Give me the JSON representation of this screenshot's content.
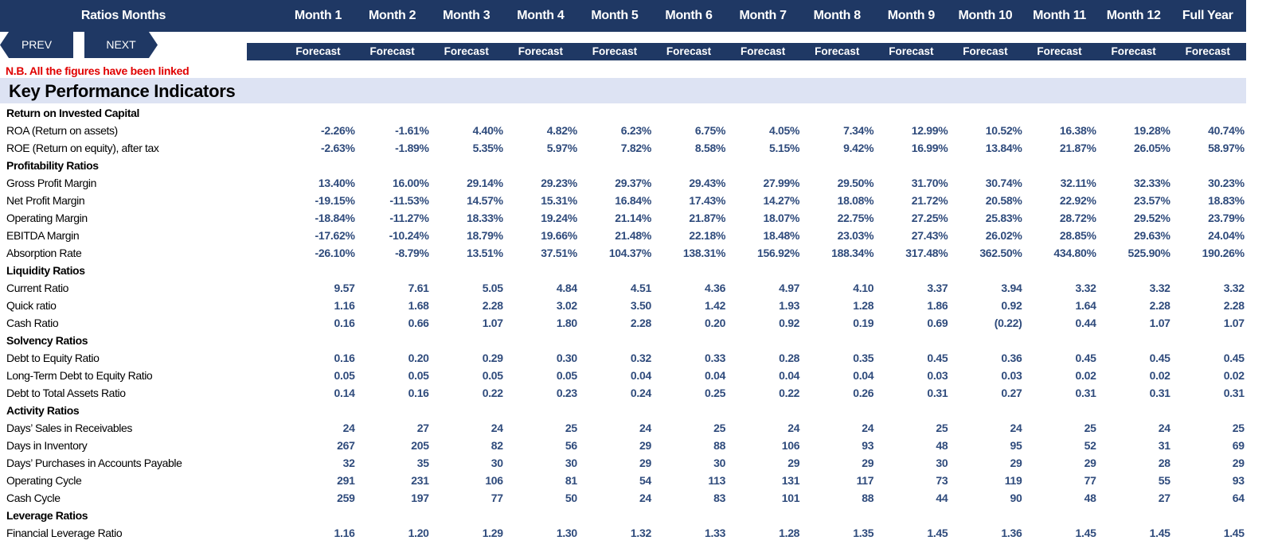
{
  "header": {
    "title": "Ratios Months",
    "columns": [
      "Month 1",
      "Month 2",
      "Month 3",
      "Month 4",
      "Month 5",
      "Month 6",
      "Month 7",
      "Month 8",
      "Month 9",
      "Month 10",
      "Month 11",
      "Month 12",
      "Full Year"
    ],
    "subheaders": [
      "Forecast",
      "Forecast",
      "Forecast",
      "Forecast",
      "Forecast",
      "Forecast",
      "Forecast",
      "Forecast",
      "Forecast",
      "Forecast",
      "Forecast",
      "Forecast",
      "Forecast"
    ]
  },
  "buttons": [
    "PREV",
    "NEXT"
  ],
  "note": "N.B. All the figures have been linked",
  "section": "Key Performance Indicators",
  "groups": [
    {
      "title": "Return on Invested Capital",
      "rows": [
        {
          "label": "ROA (Return on assets)",
          "values": [
            "-2.26%",
            "-1.61%",
            "4.40%",
            "4.82%",
            "6.23%",
            "6.75%",
            "4.05%",
            "7.34%",
            "12.99%",
            "10.52%",
            "16.38%",
            "19.28%",
            "40.74%"
          ]
        },
        {
          "label": "ROE (Return on equity), after tax",
          "values": [
            "-2.63%",
            "-1.89%",
            "5.35%",
            "5.97%",
            "7.82%",
            "8.58%",
            "5.15%",
            "9.42%",
            "16.99%",
            "13.84%",
            "21.87%",
            "26.05%",
            "58.97%"
          ]
        }
      ]
    },
    {
      "title": "Profitability Ratios",
      "rows": [
        {
          "label": "Gross Profit Margin",
          "values": [
            "13.40%",
            "16.00%",
            "29.14%",
            "29.23%",
            "29.37%",
            "29.43%",
            "27.99%",
            "29.50%",
            "31.70%",
            "30.74%",
            "32.11%",
            "32.33%",
            "30.23%"
          ]
        },
        {
          "label": "Net Profit Margin",
          "values": [
            "-19.15%",
            "-11.53%",
            "14.57%",
            "15.31%",
            "16.84%",
            "17.43%",
            "14.27%",
            "18.08%",
            "21.72%",
            "20.58%",
            "22.92%",
            "23.57%",
            "18.83%"
          ]
        },
        {
          "label": "Operating Margin",
          "values": [
            "-18.84%",
            "-11.27%",
            "18.33%",
            "19.24%",
            "21.14%",
            "21.87%",
            "18.07%",
            "22.75%",
            "27.25%",
            "25.83%",
            "28.72%",
            "29.52%",
            "23.79%"
          ]
        },
        {
          "label": "EBITDA Margin",
          "values": [
            "-17.62%",
            "-10.24%",
            "18.79%",
            "19.66%",
            "21.48%",
            "22.18%",
            "18.48%",
            "23.03%",
            "27.43%",
            "26.02%",
            "28.85%",
            "29.63%",
            "24.04%"
          ]
        },
        {
          "label": "Absorption Rate",
          "values": [
            "-26.10%",
            "-8.79%",
            "13.51%",
            "37.51%",
            "104.37%",
            "138.31%",
            "156.92%",
            "188.34%",
            "317.48%",
            "362.50%",
            "434.80%",
            "525.90%",
            "190.26%"
          ]
        }
      ]
    },
    {
      "title": "Liquidity Ratios",
      "rows": [
        {
          "label": "Current Ratio",
          "values": [
            "9.57",
            "7.61",
            "5.05",
            "4.84",
            "4.51",
            "4.36",
            "4.97",
            "4.10",
            "3.37",
            "3.94",
            "3.32",
            "3.32",
            "3.32"
          ]
        },
        {
          "label": "Quick ratio",
          "values": [
            "1.16",
            "1.68",
            "2.28",
            "3.02",
            "3.50",
            "1.42",
            "1.93",
            "1.28",
            "1.86",
            "0.92",
            "1.64",
            "2.28",
            "2.28"
          ]
        },
        {
          "label": "Cash Ratio",
          "values": [
            "0.16",
            "0.66",
            "1.07",
            "1.80",
            "2.28",
            "0.20",
            "0.92",
            "0.19",
            "0.69",
            "(0.22)",
            "0.44",
            "1.07",
            "1.07"
          ]
        }
      ]
    },
    {
      "title": "Solvency Ratios",
      "rows": [
        {
          "label": "Debt to Equity Ratio",
          "values": [
            "0.16",
            "0.20",
            "0.29",
            "0.30",
            "0.32",
            "0.33",
            "0.28",
            "0.35",
            "0.45",
            "0.36",
            "0.45",
            "0.45",
            "0.45"
          ]
        },
        {
          "label": "Long-Term Debt to Equity Ratio",
          "values": [
            "0.05",
            "0.05",
            "0.05",
            "0.05",
            "0.04",
            "0.04",
            "0.04",
            "0.04",
            "0.03",
            "0.03",
            "0.02",
            "0.02",
            "0.02"
          ]
        },
        {
          "label": "Debt to Total Assets Ratio",
          "values": [
            "0.14",
            "0.16",
            "0.22",
            "0.23",
            "0.24",
            "0.25",
            "0.22",
            "0.26",
            "0.31",
            "0.27",
            "0.31",
            "0.31",
            "0.31"
          ]
        }
      ]
    },
    {
      "title": "Activity Ratios",
      "rows": [
        {
          "label": "Days’ Sales in Receivables",
          "values": [
            "24",
            "27",
            "24",
            "25",
            "24",
            "25",
            "24",
            "24",
            "25",
            "24",
            "25",
            "24",
            "25"
          ]
        },
        {
          "label": "Days in Inventory",
          "values": [
            "267",
            "205",
            "82",
            "56",
            "29",
            "88",
            "106",
            "93",
            "48",
            "95",
            "52",
            "31",
            "69"
          ]
        },
        {
          "label": "Days’ Purchases in Accounts Payable",
          "values": [
            "32",
            "35",
            "30",
            "30",
            "29",
            "30",
            "29",
            "29",
            "30",
            "29",
            "29",
            "28",
            "29"
          ]
        },
        {
          "label": "Operating Cycle",
          "values": [
            "291",
            "231",
            "106",
            "81",
            "54",
            "113",
            "131",
            "117",
            "73",
            "119",
            "77",
            "55",
            "93"
          ]
        },
        {
          "label": "Cash Cycle",
          "values": [
            "259",
            "197",
            "77",
            "50",
            "24",
            "83",
            "101",
            "88",
            "44",
            "90",
            "48",
            "27",
            "64"
          ]
        }
      ]
    },
    {
      "title": "Leverage Ratios",
      "rows": [
        {
          "label": "Financial Leverage Ratio",
          "values": [
            "1.16",
            "1.20",
            "1.29",
            "1.30",
            "1.32",
            "1.33",
            "1.28",
            "1.35",
            "1.45",
            "1.36",
            "1.45",
            "1.45",
            "1.45"
          ]
        }
      ]
    }
  ]
}
